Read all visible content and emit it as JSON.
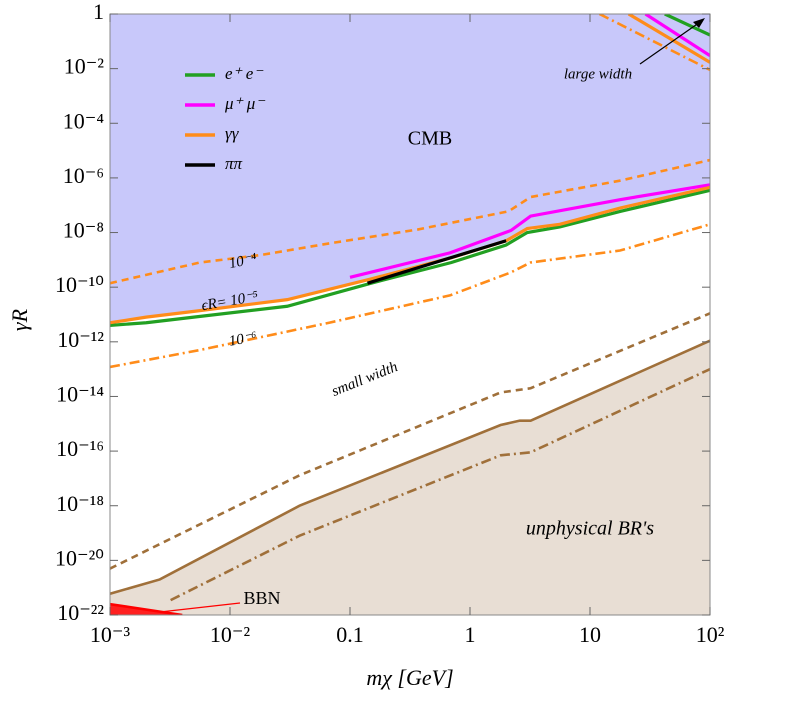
{
  "chart_data": {
    "type": "line",
    "xlabel": "mχ [GeV]",
    "ylabel": "γR",
    "xscale": "log",
    "yscale": "log",
    "xlim": [
      0.001,
      100
    ],
    "ylim": [
      1e-22,
      1
    ],
    "xticks": [
      {
        "value": 0.001,
        "label": "10⁻³"
      },
      {
        "value": 0.01,
        "label": "10⁻²"
      },
      0.1,
      1,
      10,
      {
        "value": 100,
        "label": "10²"
      }
    ],
    "yticks": [
      1,
      {
        "value": 0.01,
        "label": "10⁻²"
      },
      {
        "value": 0.0001,
        "label": "10⁻⁴"
      },
      {
        "value": 1e-06,
        "label": "10⁻⁶"
      },
      {
        "value": 1e-08,
        "label": "10⁻⁸"
      },
      {
        "value": 1e-10,
        "label": "10⁻¹⁰"
      },
      {
        "value": 1e-12,
        "label": "10⁻¹²"
      },
      {
        "value": 1e-14,
        "label": "10⁻¹⁴"
      },
      {
        "value": 1e-16,
        "label": "10⁻¹⁶"
      },
      {
        "value": 1e-18,
        "label": "10⁻¹⁸"
      },
      {
        "value": 1e-20,
        "label": "10⁻²⁰"
      },
      {
        "value": 1e-22,
        "label": "10⁻²²"
      }
    ],
    "regions": [
      {
        "name": "CMB",
        "color": "#c8c8fa",
        "text_color": "#2020c8",
        "fill": "above",
        "x": [
          0.001,
          0.002,
          0.005,
          0.03,
          0.15,
          0.7,
          2,
          3,
          5.6,
          18,
          100
        ],
        "values": [
          5e-12,
          8e-12,
          1.3e-11,
          3.5e-11,
          2e-10,
          1.2e-09,
          5e-09,
          1.4e-08,
          2e-08,
          8e-08,
          4.5e-07
        ]
      },
      {
        "name": "unphysical BR's",
        "color": "#e8ded4",
        "text_color": "#a0703a",
        "fill": "below",
        "x": [
          0.001,
          0.0026,
          0.038,
          1.8,
          2.6,
          3.2,
          100
        ],
        "values": [
          6e-22,
          2e-21,
          1e-18,
          9e-16,
          1.3e-15,
          1.3e-15,
          1.1e-12
        ]
      },
      {
        "name": "BBN",
        "color": "#ff2020",
        "text_color": "#ff0000",
        "fill": "below",
        "x": [
          0.001,
          0.004
        ],
        "values": [
          2.5e-22,
          1e-22
        ]
      }
    ],
    "series": [
      {
        "name": "e⁺ e⁻",
        "color": "#22a022",
        "dash": "solid",
        "x": [
          0.001,
          0.002,
          0.005,
          0.03,
          0.15,
          0.7,
          2,
          3,
          5.6,
          18,
          100,
          null,
          42,
          100
        ],
        "values": [
          4e-12,
          5e-12,
          8e-12,
          2e-11,
          1.4e-10,
          8e-10,
          3.5e-09,
          1e-08,
          1.6e-08,
          6e-08,
          3.5e-07,
          null,
          1,
          0.17
        ]
      },
      {
        "name": "μ⁺ μ⁻",
        "color": "#ff00ff",
        "dash": "solid",
        "x": [
          0.1,
          0.68,
          2.2,
          3.2,
          17.8,
          100,
          null,
          29,
          100
        ],
        "values": [
          2.3e-10,
          1.8e-09,
          1.2e-08,
          4e-08,
          1.6e-07,
          5.6e-07,
          null,
          1,
          0.03
        ]
      },
      {
        "name": "γγ",
        "color": "#ff8c1a",
        "dash": "solid",
        "x": [
          0.001,
          0.002,
          0.005,
          0.03,
          0.15,
          0.7,
          2,
          3,
          5.6,
          18,
          100,
          null,
          21,
          100
        ],
        "values": [
          5e-12,
          8e-12,
          1.3e-11,
          3.5e-11,
          2e-10,
          1.2e-09,
          5e-09,
          1.4e-08,
          2e-08,
          8e-08,
          4.5e-07,
          null,
          1,
          0.017
        ]
      },
      {
        "name": "ππ",
        "color": "#000000",
        "dash": "solid",
        "x": [
          0.14,
          2
        ],
        "values": [
          1.4e-10,
          5e-09
        ]
      },
      {
        "color": "#ff8c1a",
        "dash": "dashed",
        "x": [
          0.001,
          0.0056,
          0.018,
          0.067,
          0.37,
          2.1,
          3.2,
          18,
          100
        ],
        "values": [
          1.4e-10,
          8e-10,
          1.5e-09,
          4e-09,
          1.3e-08,
          6e-08,
          2e-07,
          8e-07,
          4.5e-06
        ]
      },
      {
        "color": "#ff8c1a",
        "dash": "dashdot",
        "x": [
          0.001,
          0.0056,
          0.067,
          0.68,
          2.2,
          3.2,
          17.8,
          100,
          null,
          12,
          100
        ],
        "values": [
          1.2e-13,
          5e-13,
          5e-12,
          5e-11,
          3.5e-10,
          8e-10,
          2.2e-09,
          2e-08,
          null,
          1,
          0.009
        ]
      },
      {
        "color": "#a0703a",
        "dash": "solid",
        "x": [
          0.001,
          0.0026,
          0.038,
          1.8,
          2.6,
          3.2,
          100
        ],
        "values": [
          6e-22,
          2e-21,
          1e-18,
          9e-16,
          1.3e-15,
          1.3e-15,
          1.1e-12
        ]
      },
      {
        "color": "#a0703a",
        "dash": "dashed",
        "x": [
          0.001,
          0.038,
          1.8,
          3.2,
          100
        ],
        "values": [
          5e-21,
          1.3e-17,
          1.4e-14,
          2e-14,
          1.1e-11
        ]
      },
      {
        "color": "#a0703a",
        "dash": "dashdot",
        "x": [
          0.0032,
          0.038,
          1.8,
          3.2,
          100
        ],
        "values": [
          3.5e-22,
          8e-20,
          7e-17,
          9e-17,
          1e-13
        ]
      },
      {
        "color": "#ff0000",
        "dash": "solid",
        "x": [
          0.001,
          0.004
        ],
        "values": [
          2.5e-22,
          1e-22
        ]
      }
    ],
    "annotations": [
      "large width",
      "small width",
      "10⁻⁴",
      "ϵR= 10⁻⁵",
      "10⁻⁶"
    ]
  }
}
